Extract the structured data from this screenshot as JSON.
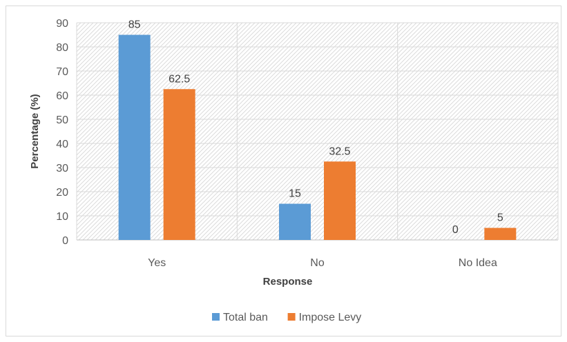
{
  "chart_data": {
    "type": "bar",
    "title": "",
    "xlabel": "Response",
    "ylabel": "Percentage (%)",
    "categories": [
      "Yes",
      "No",
      "No Idea"
    ],
    "ylim": [
      0,
      90
    ],
    "yticks": [
      0,
      10,
      20,
      30,
      40,
      50,
      60,
      70,
      80,
      90
    ],
    "grid": true,
    "legend_position": "bottom",
    "series": [
      {
        "name": "Total ban",
        "color": "#5b9bd5",
        "values": [
          85,
          15,
          0
        ],
        "labels": [
          "85",
          "15",
          "0"
        ]
      },
      {
        "name": "Impose Levy",
        "color": "#ed7d31",
        "values": [
          62.5,
          32.5,
          5
        ],
        "labels": [
          "62.5",
          "32.5",
          "5"
        ]
      }
    ]
  }
}
